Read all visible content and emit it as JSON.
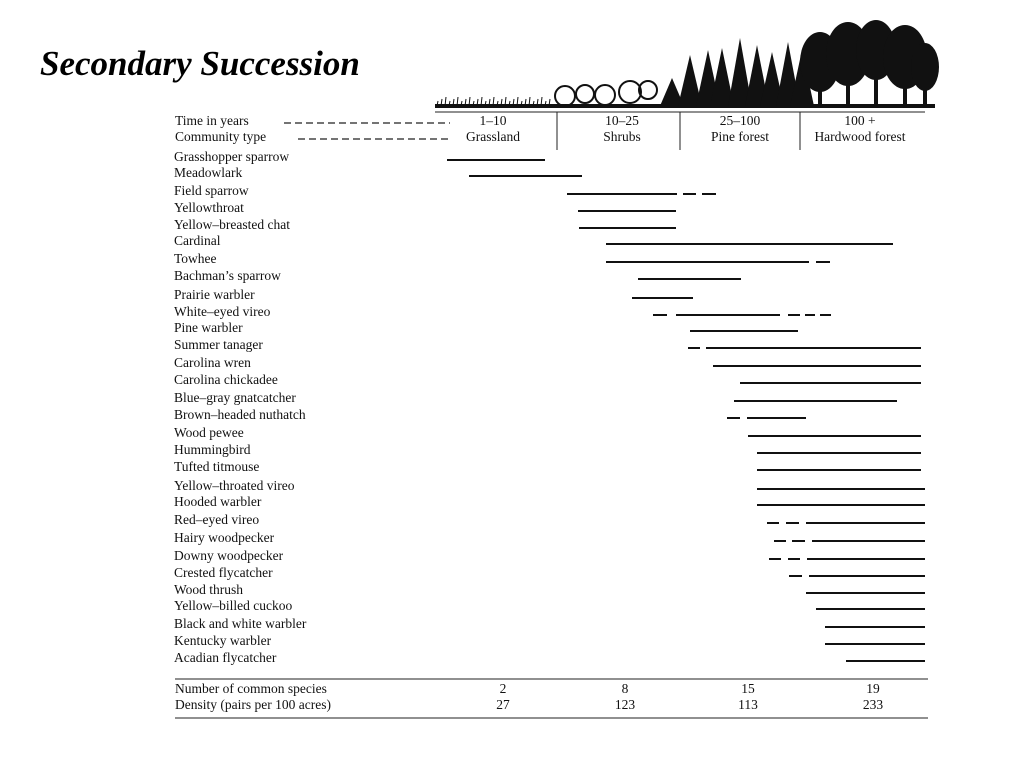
{
  "title": "Secondary Succession",
  "header": {
    "time_label": "Time in years",
    "community_label": "Community type",
    "columns": [
      {
        "years": "1–10",
        "community": "Grassland"
      },
      {
        "years": "10–25",
        "community": "Shrubs"
      },
      {
        "years": "25–100",
        "community": "Pine forest"
      },
      {
        "years": "100 +",
        "community": "Hardwood forest"
      }
    ]
  },
  "species": [
    "Grasshopper sparrow",
    "Meadowlark",
    "Field sparrow",
    "Yellowthroat",
    "Yellow–breasted chat",
    "Cardinal",
    "Towhee",
    "Bachman’s sparrow",
    "Prairie warbler",
    "White–eyed vireo",
    "Pine warbler",
    "Summer tanager",
    "Carolina wren",
    "Carolina chickadee",
    "Blue–gray gnatcatcher",
    "Brown–headed nuthatch",
    "Wood pewee",
    "Hummingbird",
    "Tufted titmouse",
    "Yellow–throated vireo",
    "Hooded warbler",
    "Red–eyed vireo",
    "Hairy woodpecker",
    "Downy woodpecker",
    "Crested flycatcher",
    "Wood thrush",
    "Yellow–billed cuckoo",
    "Black and white warbler",
    "Kentucky warbler",
    "Acadian flycatcher"
  ],
  "summary": [
    {
      "label": "Number of common species",
      "values": [
        2,
        8,
        15,
        19
      ]
    },
    {
      "label": "Density (pairs per 100 acres)",
      "values": [
        27,
        123,
        113,
        233
      ]
    }
  ]
}
